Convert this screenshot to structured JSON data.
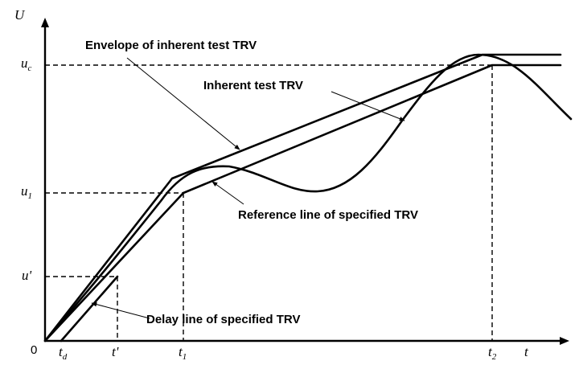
{
  "axes": {
    "y_label": "U",
    "x_label": "t",
    "origin_label": "0"
  },
  "y_ticks": {
    "uc": {
      "main": "u",
      "sub": "c"
    },
    "u1": {
      "main": "u",
      "sub": "1"
    },
    "u_prime": {
      "main": "u'"
    }
  },
  "x_ticks": {
    "td": {
      "main": "t",
      "sub": "d"
    },
    "t_prime": {
      "main": "t'"
    },
    "t1": {
      "main": "t",
      "sub": "1"
    },
    "t2": {
      "main": "t",
      "sub": "2"
    }
  },
  "annotations": {
    "envelope": "Envelope of inherent test TRV",
    "inherent": "Inherent test TRV",
    "reference": "Reference line of specified TRV",
    "delay": "Delay line of specified TRV"
  }
}
